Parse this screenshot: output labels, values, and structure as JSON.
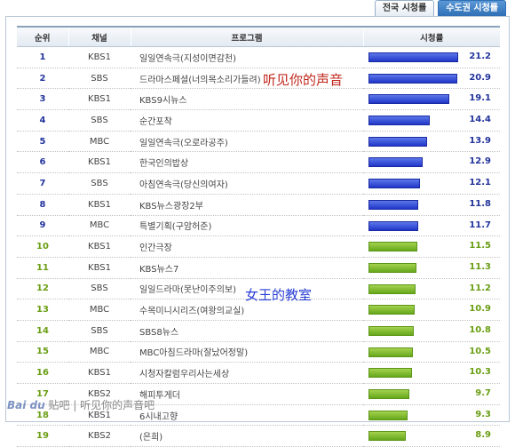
{
  "tabs": [
    "전국 시청률",
    "수도권 시청률"
  ],
  "headers": {
    "rank": "순위",
    "channel": "채널",
    "program": "프로그램",
    "rating": "시청률"
  },
  "rows": [
    {
      "rank": "1",
      "channel": "KBS1",
      "program": "일일연속극(지성이면감천)",
      "rating": "21.2",
      "color": "blue"
    },
    {
      "rank": "2",
      "channel": "SBS",
      "program": "드라마스페셜(너의목소리가들려)",
      "rating": "20.9",
      "color": "blue"
    },
    {
      "rank": "3",
      "channel": "KBS1",
      "program": "KBS9시뉴스",
      "rating": "19.1",
      "color": "blue"
    },
    {
      "rank": "4",
      "channel": "SBS",
      "program": "순간포착",
      "rating": "14.4",
      "color": "blue"
    },
    {
      "rank": "5",
      "channel": "MBC",
      "program": "일일연속극(오로라공주)",
      "rating": "13.9",
      "color": "blue"
    },
    {
      "rank": "6",
      "channel": "KBS1",
      "program": "한국인의밥상",
      "rating": "12.9",
      "color": "blue"
    },
    {
      "rank": "7",
      "channel": "SBS",
      "program": "아침연속극(당신의여자)",
      "rating": "12.1",
      "color": "blue"
    },
    {
      "rank": "8",
      "channel": "KBS1",
      "program": "KBS뉴스광장2부",
      "rating": "11.8",
      "color": "blue"
    },
    {
      "rank": "9",
      "channel": "MBC",
      "program": "특별기획(구암허준)",
      "rating": "11.7",
      "color": "blue"
    },
    {
      "rank": "10",
      "channel": "KBS1",
      "program": "인간극장",
      "rating": "11.5",
      "color": "green"
    },
    {
      "rank": "11",
      "channel": "KBS1",
      "program": "KBS뉴스7",
      "rating": "11.3",
      "color": "green"
    },
    {
      "rank": "12",
      "channel": "SBS",
      "program": "일일드라마(못난이주의보)",
      "rating": "11.2",
      "color": "green"
    },
    {
      "rank": "13",
      "channel": "MBC",
      "program": "수목미니시리즈(여왕의교실)",
      "rating": "10.9",
      "color": "green"
    },
    {
      "rank": "14",
      "channel": "SBS",
      "program": "SBS8뉴스",
      "rating": "10.8",
      "color": "green"
    },
    {
      "rank": "15",
      "channel": "MBC",
      "program": "MBC아침드라마(잘났어정말)",
      "rating": "10.5",
      "color": "green"
    },
    {
      "rank": "16",
      "channel": "KBS1",
      "program": "시청자칼럼우리사는세상",
      "rating": "10.3",
      "color": "green"
    },
    {
      "rank": "17",
      "channel": "KBS2",
      "program": "해피투게더",
      "rating": "9.7",
      "color": "green"
    },
    {
      "rank": "18",
      "channel": "KBS1",
      "program": "6시내고향",
      "rating": "9.3",
      "color": "green"
    },
    {
      "rank": "19",
      "channel": "KBS2",
      "program": "(은희)",
      "rating": "8.9",
      "color": "green"
    }
  ],
  "annotations": {
    "song_title": "听见你的声音",
    "queen_title": "女王的教室"
  },
  "watermark": {
    "logo": "Bai du",
    "text": "贴吧 | 听见你的声音吧"
  },
  "colors": {
    "blue": "#2136c9",
    "green": "#66a81c"
  }
}
